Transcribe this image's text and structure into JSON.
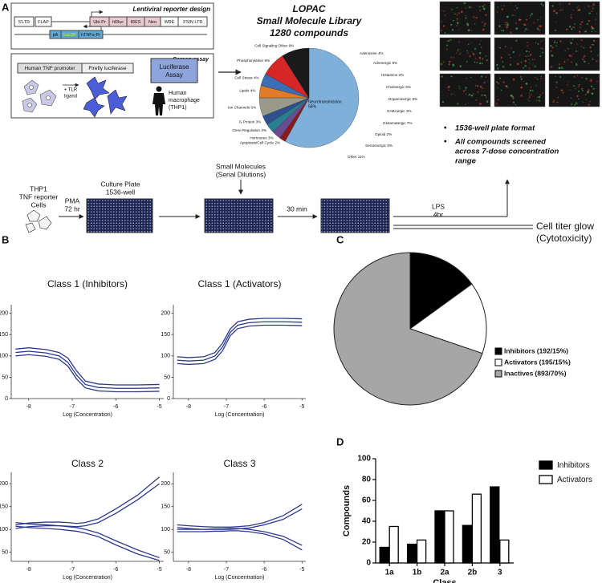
{
  "panels": {
    "letters": [
      "A",
      "B",
      "C",
      "D"
    ],
    "lentiviral": {
      "title": "Lentiviral reporter design",
      "elements": [
        "5'LTR",
        "FLAP",
        "Ubi-Pr",
        "hRluc",
        "IRES",
        "Neo",
        "WRE",
        "3'SIN LTR",
        "pA",
        "Luc2P",
        "hTNFa-Pr"
      ]
    },
    "screen_assay": {
      "title": "Screen assay",
      "promoter": "Human TNF promoter",
      "reporter": "Firefly luciferase",
      "stimulus": [
        "+ TLR",
        "ligand"
      ],
      "assay": [
        "Luciferase",
        "Assay"
      ],
      "cell_type": [
        "Human",
        "macrophage",
        "(THP1)"
      ]
    },
    "bullets": [
      [
        "1536-well plate format"
      ],
      [
        "All compounds screened",
        "across 7-dose concentration",
        "range"
      ]
    ],
    "workflow": {
      "cells": [
        "THP1",
        "TNF reporter",
        "Cells"
      ],
      "pma": [
        "PMA",
        "72 hr"
      ],
      "culture_plate": [
        "Culture Plate",
        "1536-well"
      ],
      "small_molecules": [
        "Small Molecules",
        "(Serial Dilutions)"
      ],
      "incubation": "30 min",
      "lps": [
        "LPS",
        "4hr"
      ],
      "readout": [
        "Cell titer glow",
        "(Cytotoxicity)"
      ]
    }
  },
  "chart_data": [
    {
      "type": "pie",
      "title": "LOPAC",
      "subtitle": [
        "Small Molecule Library",
        "1280 compounds"
      ],
      "categories": [
        "Neurotransmission",
        "Apoptosis/Cell Cycle",
        "Hormones",
        "Gene Regulation",
        "G Protein",
        "Ion Channels",
        "Lipids",
        "Cell Stress",
        "Phosphorylation",
        "Cell Signaling Other"
      ],
      "values": [
        58,
        2,
        3,
        3,
        3,
        6,
        4,
        4,
        8,
        9
      ],
      "value_labels": [
        "58%",
        "2%",
        "3%",
        "3%",
        "3%",
        "6%",
        "4%",
        "4%",
        "8%",
        "9%"
      ],
      "colors": [
        "#7fb0da",
        "#8b1a1a",
        "#6a4c93",
        "#2a7f8f",
        "#2f4f8f",
        "#9a9a8a",
        "#e07b2a",
        "#3a6fb5",
        "#d62728",
        "#1a1a1a"
      ],
      "annotations": [
        "Adenosine 4%",
        "Adrenergic 8%",
        "Histamine 2%",
        "Cholinergic 6%",
        "Dopaminergic 9%",
        "GABAergic 3%",
        "Glutamatergic 7%",
        "Opioid 2%",
        "Serotonergic 6%",
        "Other 11%"
      ]
    },
    {
      "type": "line",
      "title": "Class 1 (Inhibitors)",
      "xlabel": "Log (Concentration)",
      "x": [
        -8.3,
        -8,
        -7.6,
        -7.3,
        -7.1,
        -6.9,
        -6.7,
        -6.4,
        -6,
        -5.5,
        -5
      ],
      "xlim": [
        -8.4,
        -4.9
      ],
      "xticks": [
        -8,
        -7,
        -6,
        -5
      ],
      "ylim": [
        0,
        220
      ],
      "yticks": [
        0,
        50,
        100,
        150,
        200
      ],
      "series": [
        {
          "color": "#2b3990",
          "values": [
            116,
            119,
            115,
            108,
            95,
            65,
            41,
            34,
            32,
            32,
            33
          ]
        },
        {
          "color": "#2b3990",
          "values": [
            108,
            111,
            107,
            100,
            85,
            55,
            33,
            26,
            24,
            24,
            25
          ]
        },
        {
          "color": "#2b3990",
          "values": [
            100,
            103,
            99,
            92,
            76,
            46,
            25,
            18,
            16,
            16,
            17
          ]
        }
      ]
    },
    {
      "type": "line",
      "title": "Class 1 (Activators)",
      "xlabel": "Log (Concentration)",
      "x": [
        -8.3,
        -8,
        -7.6,
        -7.3,
        -7.1,
        -6.9,
        -6.7,
        -6.4,
        -6,
        -5.5,
        -5
      ],
      "xlim": [
        -8.4,
        -4.9
      ],
      "xticks": [
        -8,
        -7,
        -6,
        -5
      ],
      "ylim": [
        0,
        220
      ],
      "yticks": [
        0,
        50,
        100,
        150,
        200
      ],
      "series": [
        {
          "color": "#2b3990",
          "values": [
            98,
            96,
            98,
            108,
            130,
            163,
            180,
            186,
            188,
            188,
            187
          ]
        },
        {
          "color": "#2b3990",
          "values": [
            90,
            88,
            90,
            100,
            121,
            155,
            172,
            178,
            180,
            180,
            179
          ]
        },
        {
          "color": "#2b3990",
          "values": [
            82,
            80,
            82,
            92,
            112,
            147,
            164,
            170,
            172,
            172,
            171
          ]
        }
      ]
    },
    {
      "type": "line",
      "title": "Class 2",
      "xlabel": "Log (Concentration)",
      "x": [
        -8.3,
        -8,
        -7.6,
        -7.3,
        -7.1,
        -6.9,
        -6.7,
        -6.4,
        -6,
        -5.5,
        -5
      ],
      "xlim": [
        -8.4,
        -4.9
      ],
      "xticks": [
        -8,
        -7,
        -6,
        -5
      ],
      "ylim": [
        30,
        225
      ],
      "yticks": [
        50,
        100,
        150,
        200
      ],
      "series": [
        {
          "color": "#2b3990",
          "values": [
            110,
            114,
            116,
            116,
            115,
            113,
            115,
            123,
            145,
            175,
            215
          ]
        },
        {
          "color": "#2b3990",
          "values": [
            102,
            106,
            108,
            108,
            107,
            106,
            108,
            115,
            135,
            165,
            200
          ]
        },
        {
          "color": "#2b3990",
          "values": [
            115,
            112,
            110,
            108,
            106,
            104,
            100,
            92,
            75,
            55,
            38
          ]
        },
        {
          "color": "#2b3990",
          "values": [
            107,
            104,
            102,
            100,
            98,
            96,
            92,
            84,
            66,
            46,
            32
          ]
        }
      ]
    },
    {
      "type": "line",
      "title": "Class 3",
      "xlabel": "Log (Concentration)",
      "x": [
        -8.3,
        -8,
        -7.6,
        -7.3,
        -7.1,
        -6.9,
        -6.7,
        -6.4,
        -6,
        -5.5,
        -5
      ],
      "xlim": [
        -8.4,
        -4.9
      ],
      "xticks": [
        -8,
        -7,
        -6,
        -5
      ],
      "ylim": [
        30,
        225
      ],
      "yticks": [
        50,
        100,
        150,
        200
      ],
      "series": [
        {
          "color": "#2b3990",
          "values": [
            110,
            108,
            106,
            105,
            105,
            105,
            106,
            108,
            115,
            130,
            155
          ]
        },
        {
          "color": "#2b3990",
          "values": [
            104,
            102,
            100,
            100,
            100,
            100,
            101,
            103,
            110,
            122,
            145
          ]
        },
        {
          "color": "#2b3990",
          "values": [
            100,
            100,
            100,
            101,
            101,
            102,
            102,
            100,
            95,
            85,
            65
          ]
        },
        {
          "color": "#2b3990",
          "values": [
            95,
            95,
            95,
            96,
            96,
            97,
            97,
            95,
            90,
            78,
            55
          ]
        }
      ]
    },
    {
      "type": "pie",
      "categories": [
        "Inhibitors",
        "Activators",
        "Inactives"
      ],
      "values": [
        192,
        195,
        893
      ],
      "value_labels": [
        "(192/15%)",
        "(195/15%)",
        "(893/70%)"
      ],
      "colors": [
        "#000000",
        "#ffffff",
        "#a6a6a6"
      ],
      "legend": "right"
    },
    {
      "type": "bar",
      "categories": [
        "1a",
        "1b",
        "2a",
        "2b",
        "3"
      ],
      "xlabel": "Class",
      "ylabel": "Compounds",
      "ylim": [
        0,
        100
      ],
      "yticks": [
        0,
        20,
        40,
        60,
        80,
        100
      ],
      "legend": "upper right",
      "series": [
        {
          "name": "Inhibitors",
          "color": "#000000",
          "values": [
            15,
            18,
            50,
            36,
            73
          ]
        },
        {
          "name": "Activators",
          "color": "#ffffff",
          "values": [
            35,
            22,
            50,
            66,
            22
          ]
        }
      ]
    }
  ]
}
